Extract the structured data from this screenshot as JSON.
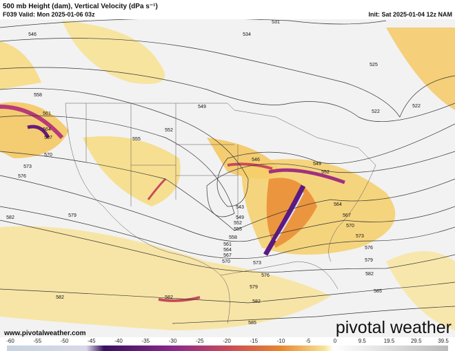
{
  "header": {
    "title": "500 mb Height (dam), Vertical Velocity (dPa s⁻¹)",
    "valid": "F039 Valid: Mon 2025-01-06 03z",
    "init": "Init: Sat 2025-01-04 12z NAM"
  },
  "contour_labels": [
    "546",
    "534",
    "531",
    "525",
    "522",
    "522",
    "549",
    "552",
    "555",
    "558",
    "561",
    "564",
    "567",
    "570",
    "573",
    "576",
    "579",
    "582",
    "546",
    "549",
    "552",
    "543",
    "549",
    "552",
    "555",
    "558",
    "561",
    "564",
    "567",
    "570",
    "573",
    "576",
    "579",
    "582",
    "585",
    "564",
    "567",
    "570",
    "573",
    "576",
    "579",
    "582",
    "585",
    "582",
    "582"
  ],
  "footer": {
    "website": "www.pivotalweather.com",
    "logo": "pivotal weather"
  },
  "colorbar": {
    "ticks": [
      "-60",
      "-55",
      "-50",
      "-45",
      "-40",
      "-35",
      "-30",
      "-25",
      "-20",
      "-15",
      "-10",
      "-5",
      "0",
      "9.5",
      "19.5",
      "29.5",
      "39.5"
    ]
  }
}
